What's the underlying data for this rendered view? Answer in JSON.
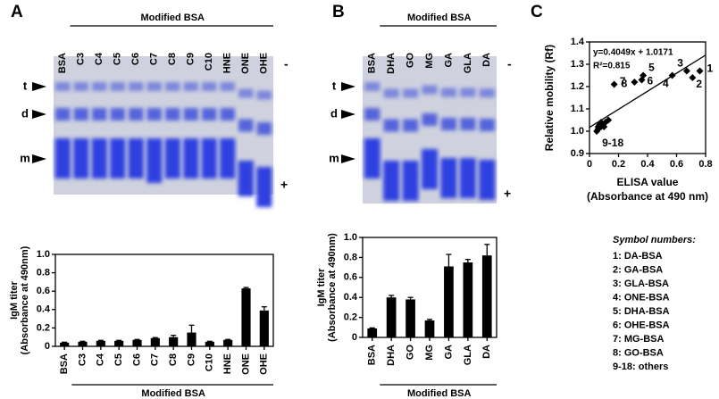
{
  "panel_labels": [
    "A",
    "B",
    "C"
  ],
  "gels": [
    {
      "group_label": "Modified BSA",
      "lanes": [
        "BSA",
        "C3",
        "C4",
        "C5",
        "C6",
        "C7",
        "C8",
        "C9",
        "C10",
        "HNE",
        "ONE",
        "OHE"
      ],
      "band_labels": [
        "t",
        "d",
        "m"
      ],
      "polarity": [
        "-",
        "+"
      ]
    },
    {
      "group_label": "Modified BSA",
      "lanes": [
        "BSA",
        "DHA",
        "GO",
        "MG",
        "GA",
        "GLA",
        "DA"
      ],
      "band_labels": [
        "t",
        "d",
        "m"
      ],
      "polarity": [
        "-",
        "+"
      ]
    }
  ],
  "chart_data": [
    {
      "type": "bar",
      "y_label": [
        "IgM titer",
        "(Absorbance at 490nm)"
      ],
      "x_group_label": "Modified BSA",
      "categories": [
        "BSA",
        "C3",
        "C4",
        "C5",
        "C6",
        "C7",
        "C8",
        "C9",
        "C10",
        "HNE",
        "ONE",
        "OHE"
      ],
      "values": [
        0.04,
        0.05,
        0.06,
        0.06,
        0.07,
        0.09,
        0.1,
        0.15,
        0.05,
        0.07,
        0.63,
        0.39
      ],
      "errors": [
        0.005,
        0.005,
        0.005,
        0.005,
        0.005,
        0.005,
        0.02,
        0.08,
        0.005,
        0.005,
        0.01,
        0.04
      ],
      "color": "#000000",
      "ylim": [
        0,
        1
      ],
      "yticks": [
        0,
        0.2,
        0.4,
        0.6,
        0.8,
        {
          "value": 1,
          "label": "1.0"
        }
      ]
    },
    {
      "type": "bar",
      "y_label": [
        "IgM titer",
        "(Absorbance at 490nm)"
      ],
      "x_group_label": "Modified BSA",
      "categories": [
        "BSA",
        "DHA",
        "GO",
        "MG",
        "GA",
        "GLA",
        "DA"
      ],
      "values": [
        0.09,
        0.4,
        0.38,
        0.17,
        0.71,
        0.75,
        0.82
      ],
      "errors": [
        0.005,
        0.02,
        0.02,
        0.01,
        0.12,
        0.03,
        0.11
      ],
      "color": "#000000",
      "ylim": [
        0,
        1
      ],
      "yticks": [
        0,
        0.2,
        0.4,
        0.6,
        0.8,
        {
          "value": 1,
          "label": "1.0"
        }
      ]
    },
    {
      "type": "scatter",
      "x_label": [
        "ELISA value",
        "(Absorbance at 490 nm)"
      ],
      "y_label": "Relative mobility (Rf)",
      "x": [
        0.76,
        0.71,
        0.67,
        0.57,
        0.37,
        0.36,
        0.31,
        0.17,
        0.05,
        0.06,
        0.07,
        0.08,
        0.09,
        0.1,
        0.11,
        0.13,
        0.06,
        0.08
      ],
      "y": [
        1.27,
        1.24,
        1.27,
        1.25,
        1.25,
        1.23,
        1.22,
        1.21,
        1.0,
        1.02,
        1.03,
        1.04,
        1.03,
        1.02,
        1.04,
        1.05,
        1.01,
        1.02
      ],
      "point_labels": [
        "1",
        "2",
        "3",
        "4",
        "5",
        "6",
        "7",
        "8",
        "9-18",
        null,
        null,
        null,
        null,
        null,
        null,
        null,
        null,
        null
      ],
      "color": "#000000",
      "fit": {
        "slope": 0.4049,
        "intercept": 1.0171,
        "label": "y=0.4049x + 1.0171"
      },
      "r2_label": "R²=0.815",
      "xlim": [
        0,
        0.8
      ],
      "xticks": [
        0,
        0.2,
        0.4,
        0.6,
        0.8
      ],
      "ylim": [
        0.9,
        1.4
      ],
      "yticks": [
        0.9,
        {
          "value": 1,
          "label": "1.0"
        },
        1.1,
        1.2,
        1.3,
        1.4
      ],
      "legend_title": "Symbol numbers:",
      "legend_items": [
        "1: DA-BSA",
        "2: GA-BSA",
        "3: GLA-BSA",
        "4: ONE-BSA",
        "5: DHA-BSA",
        "6: OHE-BSA",
        "7: MG-BSA",
        "8: GO-BSA",
        "9-18: others"
      ]
    }
  ]
}
